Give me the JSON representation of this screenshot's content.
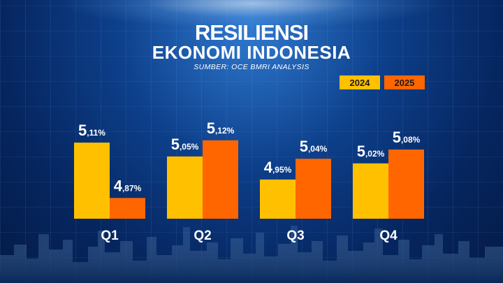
{
  "header": {
    "title": "RESILIENSI",
    "subtitle": "EKONOMI INDONESIA",
    "source": "SUMBER: OCE BMRI ANALYSIS"
  },
  "colors": {
    "series_2024": "#ffc000",
    "series_2025": "#ff6600",
    "text": "#ffffff"
  },
  "chart_data": {
    "type": "bar",
    "title": "RESILIENSI EKONOMI INDONESIA",
    "categories": [
      "Q1",
      "Q2",
      "Q3",
      "Q4"
    ],
    "series": [
      {
        "name": "2024",
        "values": [
          5.11,
          5.05,
          4.95,
          5.02
        ],
        "labels": [
          [
            "5",
            ",11%"
          ],
          [
            "5",
            ",05%"
          ],
          [
            "4",
            ",95%"
          ],
          [
            "5",
            ",02%"
          ]
        ]
      },
      {
        "name": "2025",
        "values": [
          4.87,
          5.12,
          5.04,
          5.08
        ],
        "labels": [
          [
            "4",
            ",87%"
          ],
          [
            "5",
            ",12%"
          ],
          [
            "5",
            ",04%"
          ],
          [
            "5",
            ",08%"
          ]
        ]
      }
    ],
    "legend": "top-right",
    "grid": false,
    "xlabel": "",
    "ylabel": ""
  }
}
